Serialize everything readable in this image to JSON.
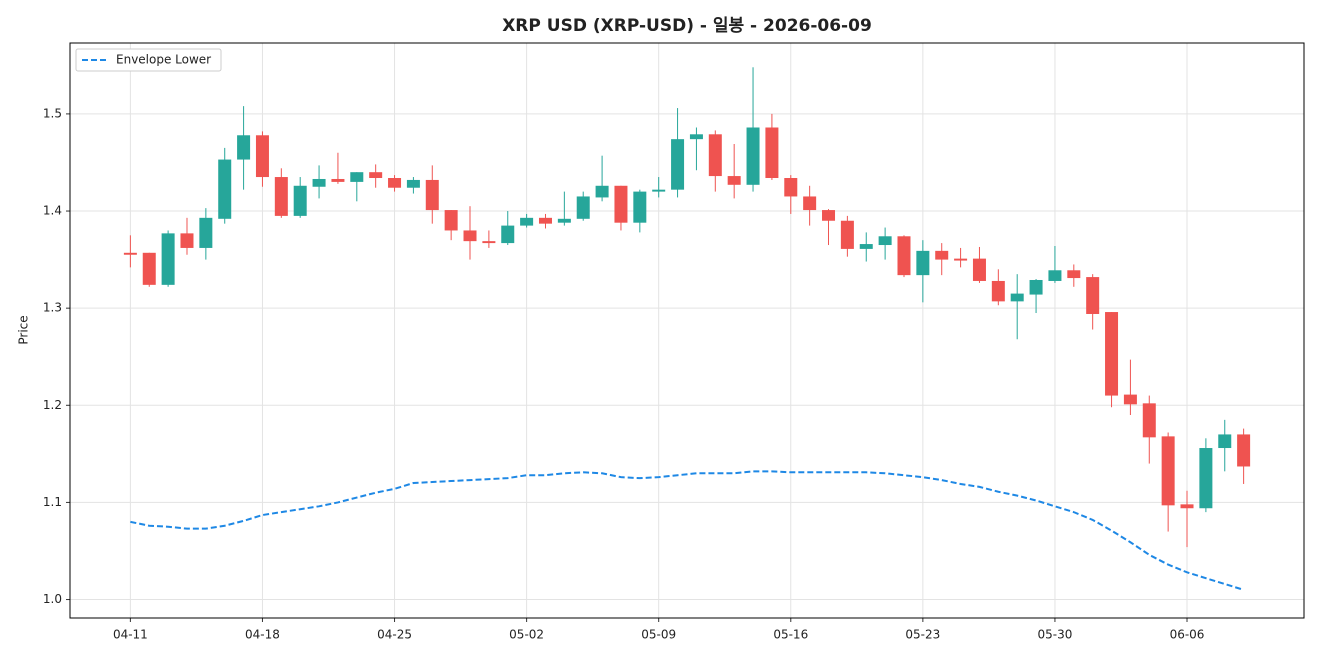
{
  "chart_data": {
    "type": "candlestick",
    "title": "XRP USD (XRP-USD) - 일봉 - 2026-06-09",
    "y_label": "Price",
    "categories": [
      "04-11",
      null,
      null,
      null,
      null,
      null,
      null,
      "04-18",
      null,
      null,
      null,
      null,
      null,
      null,
      "04-25",
      null,
      null,
      null,
      null,
      null,
      null,
      "05-02",
      null,
      null,
      null,
      null,
      null,
      null,
      "05-09",
      null,
      null,
      null,
      null,
      null,
      null,
      "05-16",
      null,
      null,
      null,
      null,
      null,
      null,
      "05-23",
      null,
      null,
      null,
      null,
      null,
      null,
      "05-30",
      null,
      null,
      null,
      null,
      null,
      null,
      "06-06",
      null,
      null,
      null
    ],
    "candles": {
      "up_color": "#26a69a",
      "down_color": "#ef5350",
      "open": [
        1.357,
        1.357,
        1.324,
        1.377,
        1.362,
        1.392,
        1.453,
        1.478,
        1.435,
        1.395,
        1.425,
        1.433,
        1.43,
        1.44,
        1.434,
        1.424,
        1.432,
        1.401,
        1.38,
        1.369,
        1.367,
        1.385,
        1.393,
        1.388,
        1.392,
        1.414,
        1.426,
        1.388,
        1.42,
        1.422,
        1.474,
        1.479,
        1.436,
        1.427,
        1.486,
        1.434,
        1.415,
        1.401,
        1.39,
        1.361,
        1.365,
        1.374,
        1.334,
        1.359,
        1.351,
        1.351,
        1.328,
        1.307,
        1.314,
        1.328,
        1.339,
        1.332,
        1.296,
        1.211,
        1.202,
        1.168,
        1.098,
        1.094,
        1.156,
        1.17
      ],
      "high": [
        1.375,
        1.357,
        1.38,
        1.393,
        1.403,
        1.465,
        1.508,
        1.482,
        1.444,
        1.435,
        1.447,
        1.46,
        1.44,
        1.448,
        1.437,
        1.435,
        1.447,
        1.401,
        1.405,
        1.38,
        1.4,
        1.397,
        1.397,
        1.42,
        1.42,
        1.457,
        1.426,
        1.422,
        1.435,
        1.506,
        1.486,
        1.483,
        1.469,
        1.548,
        1.5,
        1.437,
        1.426,
        1.402,
        1.395,
        1.378,
        1.383,
        1.375,
        1.37,
        1.367,
        1.362,
        1.363,
        1.34,
        1.335,
        1.33,
        1.364,
        1.345,
        1.335,
        1.296,
        1.247,
        1.21,
        1.172,
        1.112,
        1.166,
        1.185,
        1.176
      ],
      "low": [
        1.342,
        1.322,
        1.322,
        1.355,
        1.35,
        1.387,
        1.422,
        1.425,
        1.393,
        1.393,
        1.413,
        1.428,
        1.41,
        1.424,
        1.42,
        1.418,
        1.387,
        1.37,
        1.35,
        1.362,
        1.365,
        1.383,
        1.382,
        1.385,
        1.39,
        1.41,
        1.38,
        1.378,
        1.414,
        1.414,
        1.442,
        1.42,
        1.413,
        1.42,
        1.432,
        1.397,
        1.385,
        1.365,
        1.353,
        1.348,
        1.35,
        1.332,
        1.306,
        1.334,
        1.342,
        1.326,
        1.303,
        1.268,
        1.295,
        1.326,
        1.322,
        1.278,
        1.198,
        1.19,
        1.14,
        1.07,
        1.054,
        1.09,
        1.132,
        1.119
      ],
      "close": [
        1.355,
        1.324,
        1.377,
        1.362,
        1.393,
        1.453,
        1.478,
        1.435,
        1.395,
        1.426,
        1.433,
        1.43,
        1.44,
        1.434,
        1.424,
        1.432,
        1.401,
        1.38,
        1.369,
        1.367,
        1.385,
        1.393,
        1.387,
        1.392,
        1.415,
        1.426,
        1.388,
        1.42,
        1.422,
        1.474,
        1.479,
        1.436,
        1.427,
        1.486,
        1.434,
        1.415,
        1.401,
        1.39,
        1.361,
        1.366,
        1.374,
        1.334,
        1.359,
        1.35,
        1.349,
        1.328,
        1.307,
        1.315,
        1.329,
        1.339,
        1.331,
        1.294,
        1.21,
        1.201,
        1.167,
        1.097,
        1.094,
        1.156,
        1.17,
        1.137
      ]
    },
    "series": [
      {
        "name": "Envelope Lower",
        "color": "#1e88e5",
        "dashed": true,
        "values": [
          1.08,
          1.076,
          1.075,
          1.073,
          1.073,
          1.076,
          1.081,
          1.087,
          1.09,
          1.093,
          1.096,
          1.1,
          1.105,
          1.11,
          1.114,
          1.12,
          1.121,
          1.122,
          1.123,
          1.124,
          1.125,
          1.128,
          1.128,
          1.13,
          1.131,
          1.13,
          1.126,
          1.125,
          1.126,
          1.128,
          1.13,
          1.13,
          1.13,
          1.132,
          1.132,
          1.131,
          1.131,
          1.131,
          1.131,
          1.131,
          1.13,
          1.128,
          1.126,
          1.123,
          1.119,
          1.116,
          1.111,
          1.107,
          1.102,
          1.096,
          1.09,
          1.082,
          1.071,
          1.059,
          1.046,
          1.036,
          1.028,
          1.022,
          1.016,
          1.01
        ]
      }
    ],
    "ylim": [
      0.981,
      1.573
    ],
    "yticks": [
      {
        "value": 1,
        "label": "1.0"
      },
      1.1,
      1.2,
      1.3,
      1.4,
      1.5
    ],
    "xlim": [
      -3.2,
      62.2
    ],
    "grid": true,
    "legend": "upper left"
  }
}
